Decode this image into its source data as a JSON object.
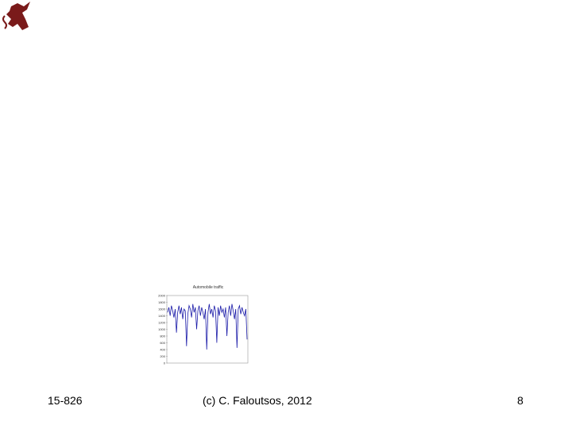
{
  "footer": {
    "course": "15-826",
    "copyright": "(c) C. Faloutsos, 2012",
    "page": "8"
  },
  "chart_data": {
    "type": "line",
    "title": "Automobile traffic",
    "values": [
      1500,
      1650,
      1400,
      1700,
      1550,
      1350,
      1600,
      900,
      1500,
      1700,
      1450,
      1650,
      1300,
      1600,
      1550,
      500,
      1450,
      1700,
      1600,
      1350,
      1750,
      1500,
      1650,
      1000,
      1550,
      1700,
      1400,
      1650,
      1500,
      1300,
      1600,
      400,
      1500,
      1750,
      1450,
      1600,
      1350,
      1700,
      1550,
      600,
      1650,
      1400,
      1700,
      1500,
      1600,
      1350,
      1650,
      800,
      1500,
      1700,
      1400,
      1750,
      1550,
      1300,
      1600,
      450,
      1600,
      1700,
      1450,
      1650,
      1500,
      1400,
      1600,
      700
    ],
    "color": "#1a1aa8",
    "ylim": [
      0,
      2000
    ],
    "yticks": [
      0,
      200,
      400,
      600,
      800,
      1000,
      1200,
      1400,
      1600,
      1800,
      2000
    ],
    "grid": false
  }
}
